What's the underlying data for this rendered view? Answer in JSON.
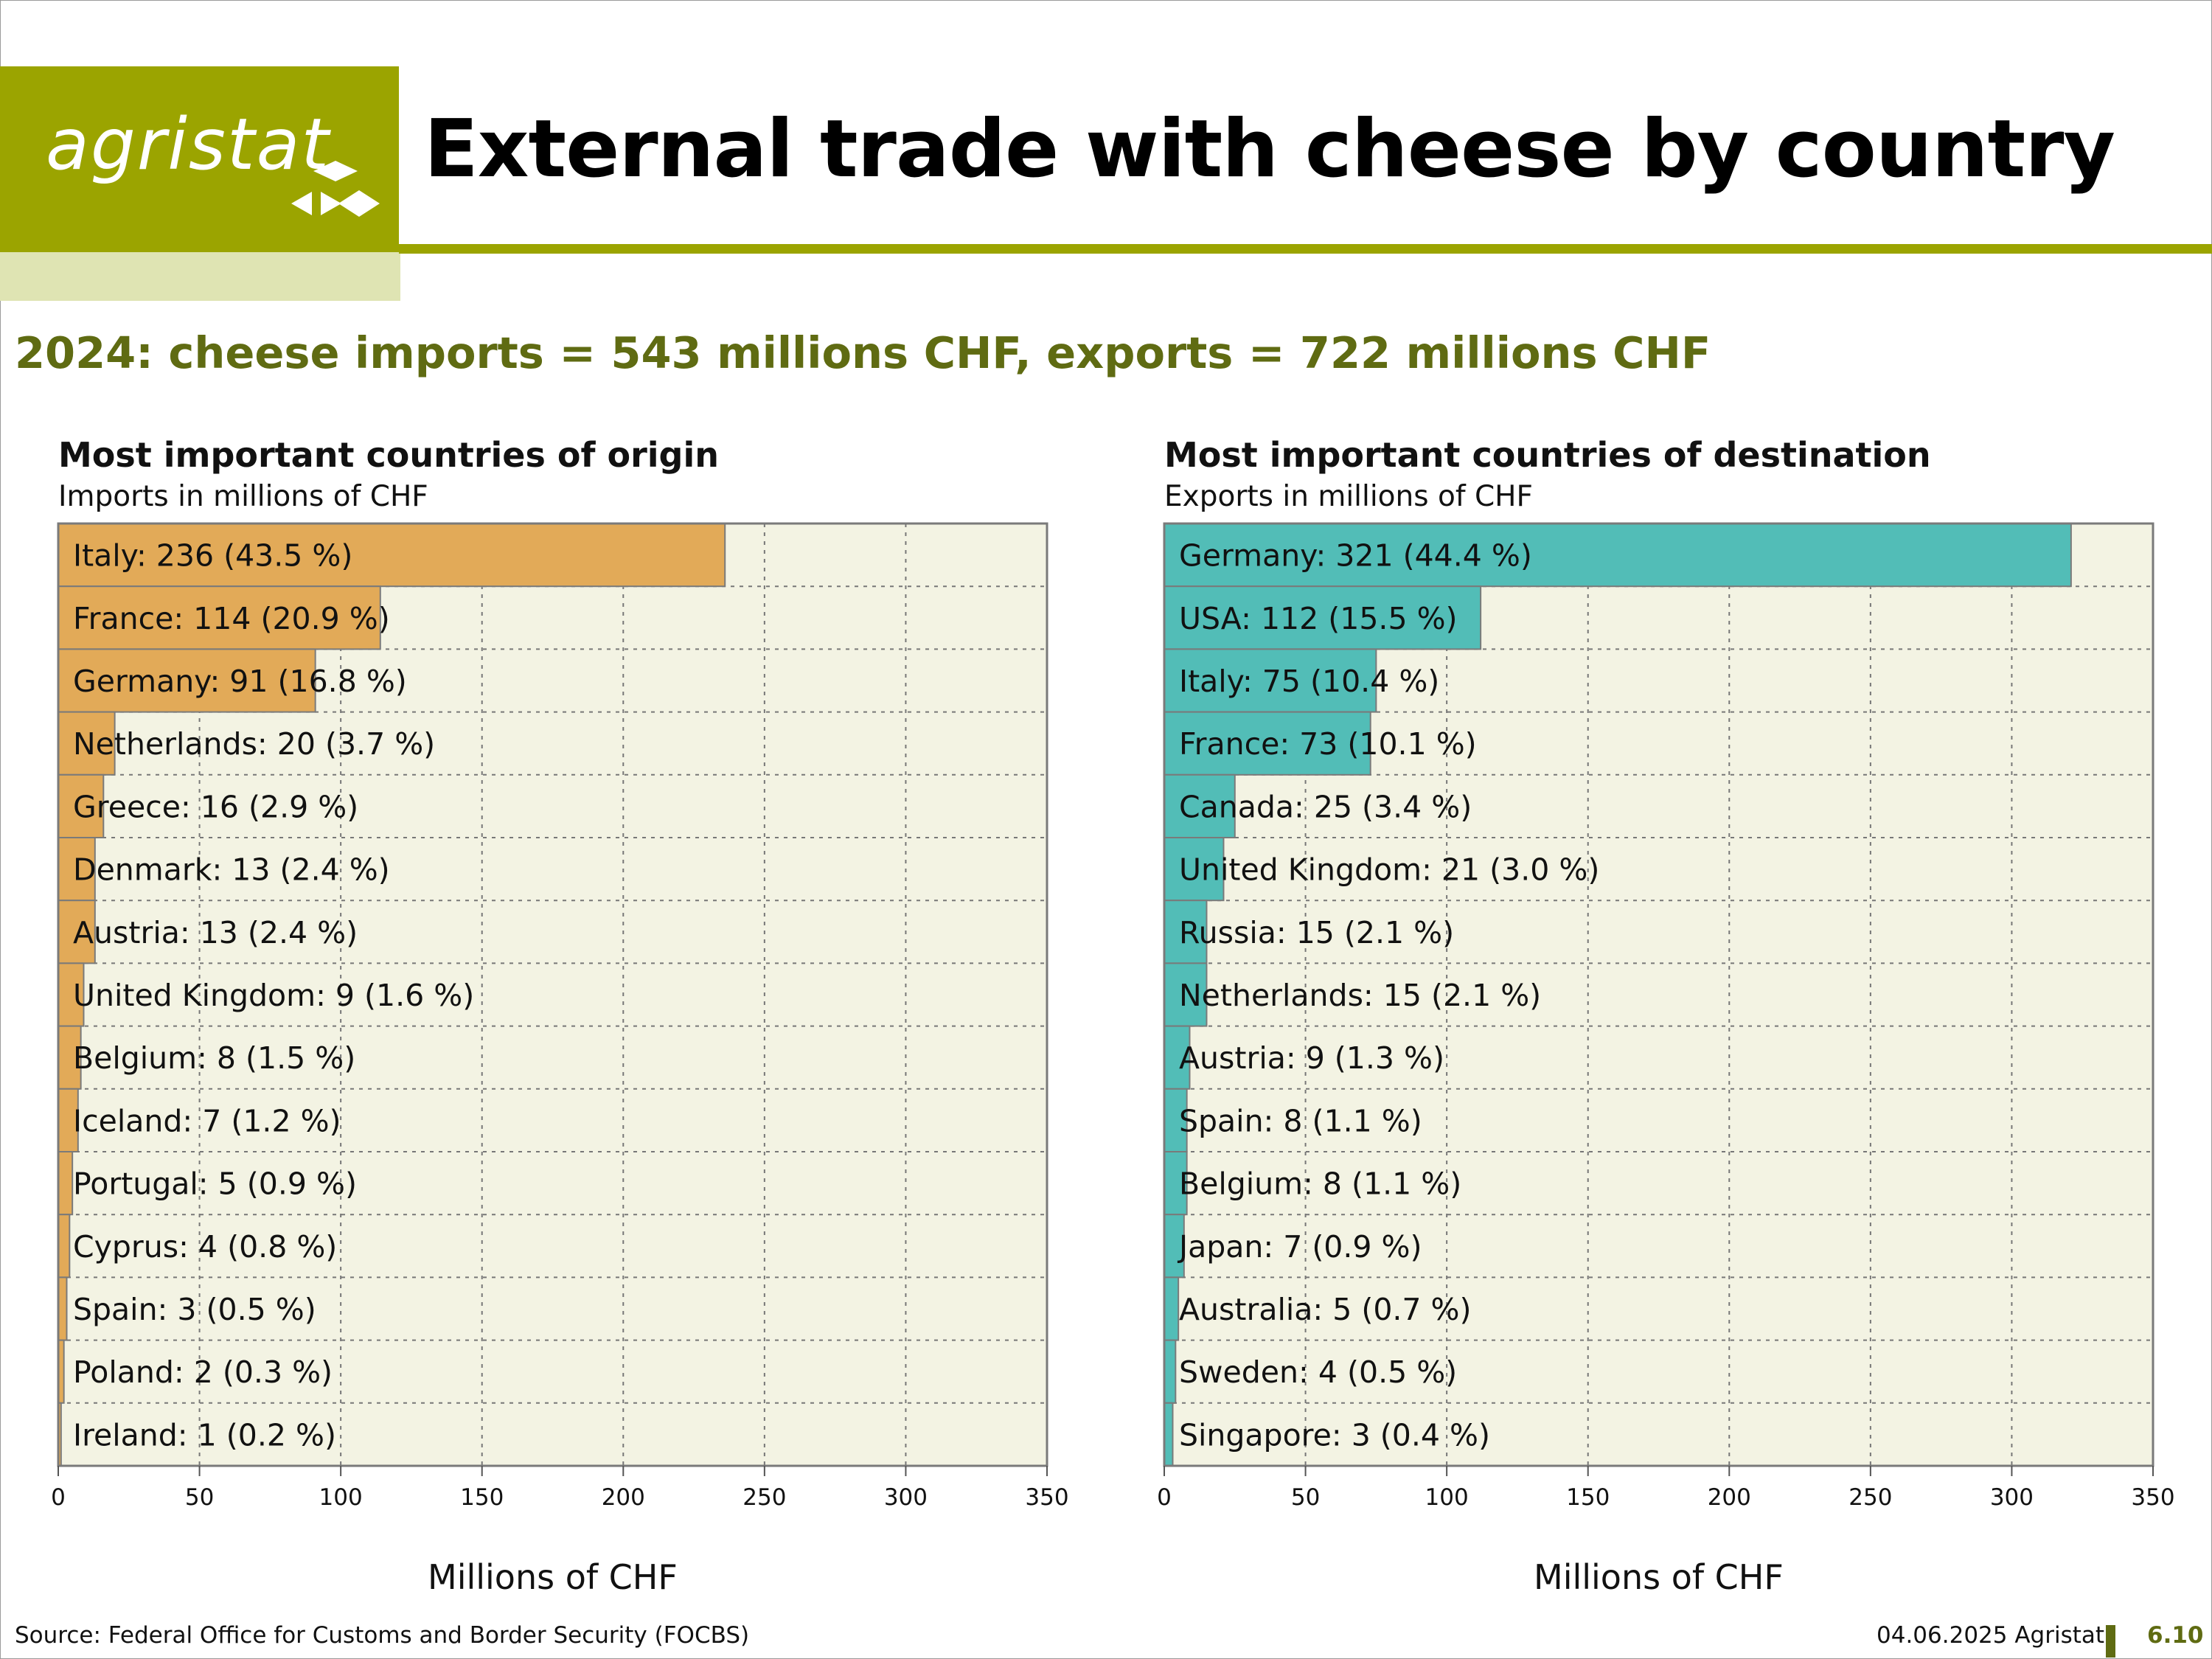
{
  "brand": {
    "logo_text": "agristat"
  },
  "title": "External trade with cheese by country",
  "subtitle": "2024: cheese imports = 543 millions CHF, exports = 722 millions CHF",
  "footer": {
    "source": "Source: Federal Office for Customs and Border Security (FOCBS)",
    "date": "04.06.2025 Agristat",
    "page": "6.10"
  },
  "colors": {
    "brand_green": "#9ba400",
    "brand_dark": "#5f6b12",
    "imports_bar": "#e2aa58",
    "exports_bar": "#52bdb7",
    "plot_bg": "#f3f3e3"
  },
  "chart_data": [
    {
      "type": "bar",
      "orientation": "horizontal",
      "title": "Most important countries of origin",
      "subtitle": "Imports in millions of CHF",
      "xlabel": "Millions of CHF",
      "xlim": [
        0,
        350
      ],
      "xticks": [
        0,
        50,
        100,
        150,
        200,
        250,
        300,
        350
      ],
      "grid": true,
      "categories": [
        "Italy",
        "France",
        "Germany",
        "Netherlands",
        "Greece",
        "Denmark",
        "Austria",
        "United Kingdom",
        "Belgium",
        "Iceland",
        "Portugal",
        "Cyprus",
        "Spain",
        "Poland",
        "Ireland"
      ],
      "values": [
        236,
        114,
        91,
        20,
        16,
        13,
        13,
        9,
        8,
        7,
        5,
        4,
        3,
        2,
        1
      ],
      "labels": [
        "Italy: 236 (43.5 %)",
        "France: 114 (20.9 %)",
        "Germany: 91 (16.8 %)",
        "Netherlands: 20 (3.7 %)",
        "Greece: 16 (2.9 %)",
        "Denmark: 13 (2.4 %)",
        "Austria: 13 (2.4 %)",
        "United Kingdom: 9 (1.6 %)",
        "Belgium: 8 (1.5 %)",
        "Iceland: 7 (1.2 %)",
        "Portugal: 5 (0.9 %)",
        "Cyprus: 4 (0.8 %)",
        "Spain: 3 (0.5 %)",
        "Poland: 2 (0.3 %)",
        "Ireland: 1 (0.2 %)"
      ]
    },
    {
      "type": "bar",
      "orientation": "horizontal",
      "title": "Most important countries of destination",
      "subtitle": "Exports in millions of CHF",
      "xlabel": "Millions of CHF",
      "xlim": [
        0,
        350
      ],
      "xticks": [
        0,
        50,
        100,
        150,
        200,
        250,
        300,
        350
      ],
      "grid": true,
      "categories": [
        "Germany",
        "USA",
        "Italy",
        "France",
        "Canada",
        "United Kingdom",
        "Russia",
        "Netherlands",
        "Austria",
        "Spain",
        "Belgium",
        "Japan",
        "Australia",
        "Sweden",
        "Singapore"
      ],
      "values": [
        321,
        112,
        75,
        73,
        25,
        21,
        15,
        15,
        9,
        8,
        8,
        7,
        5,
        4,
        3
      ],
      "labels": [
        "Germany: 321 (44.4 %)",
        "USA: 112 (15.5 %)",
        "Italy: 75 (10.4 %)",
        "France: 73 (10.1 %)",
        "Canada: 25 (3.4 %)",
        "United Kingdom: 21 (3.0 %)",
        "Russia: 15 (2.1 %)",
        "Netherlands: 15 (2.1 %)",
        "Austria: 9 (1.3 %)",
        "Spain: 8 (1.1 %)",
        "Belgium: 8 (1.1 %)",
        "Japan: 7 (0.9 %)",
        "Australia: 5 (0.7 %)",
        "Sweden: 4 (0.5 %)",
        "Singapore: 3 (0.4 %)"
      ]
    }
  ]
}
